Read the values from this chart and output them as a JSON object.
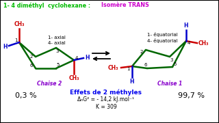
{
  "bg_color": "#ffffff",
  "border_color": "#000000",
  "title_green": "1- 4 diméthyl  cyclohexane : ",
  "title_magenta": "Isomère TRANS",
  "title_color_green": "#00bb00",
  "title_color_magenta": "#cc00cc",
  "chair_label_color": "#8800cc",
  "pct_color": "#000000",
  "ring_color": "#006600",
  "ch3_color": "#cc0000",
  "h_color": "#0000cc",
  "effect_text": "Effets de 2 méthyles",
  "effect_color": "#0000ee",
  "dg_text": "ΔₙG² = - 14,2 kJ.mol⁻¹",
  "k_text": "K = 309",
  "num_color": "#000000",
  "label_color": "#000000"
}
